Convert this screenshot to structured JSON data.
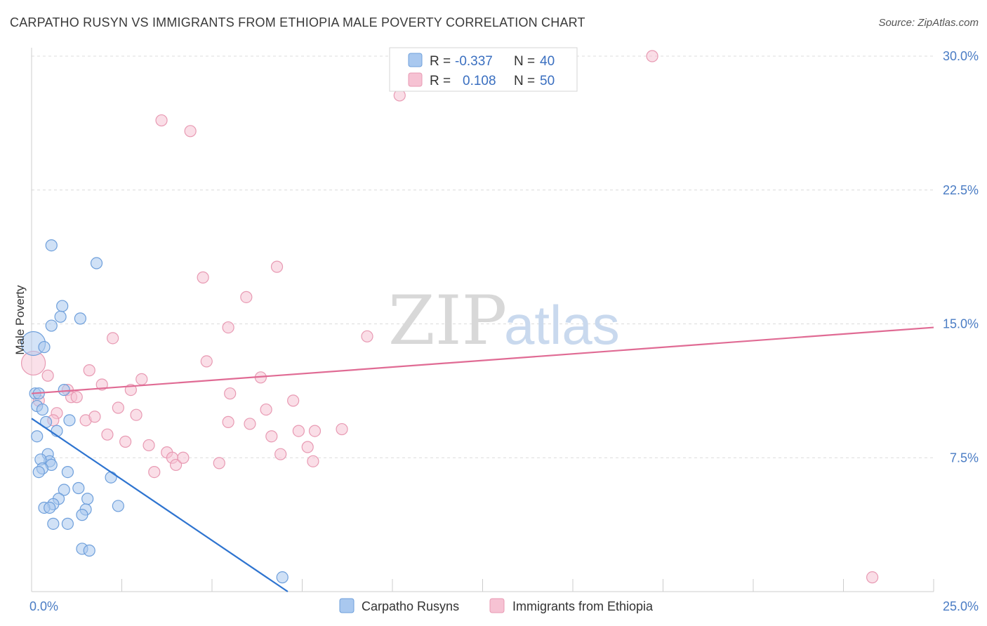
{
  "title": "CARPATHO RUSYN VS IMMIGRANTS FROM ETHIOPIA MALE POVERTY CORRELATION CHART",
  "source": "Source: ZipAtlas.com",
  "watermark": {
    "zip": "ZIP",
    "atlas": "atlas"
  },
  "colors": {
    "blue_fill": "#a9c8ef",
    "blue_stroke": "#6e9fdb",
    "blue_line": "#2e74d0",
    "pink_fill": "#f6c2d3",
    "pink_stroke": "#e89ab3",
    "pink_line": "#e06b94",
    "grid": "#dcdcdc",
    "tick_text": "#4a7cc4"
  },
  "chart_data": {
    "type": "scatter",
    "title": "CARPATHO RUSYN VS IMMIGRANTS FROM ETHIOPIA MALE POVERTY CORRELATION CHART",
    "xlabel": "",
    "ylabel": "Male Poverty",
    "xlim": [
      0,
      25
    ],
    "ylim": [
      0,
      31
    ],
    "x_tick_labels": [
      "0.0%",
      "25.0%"
    ],
    "y_ticks": [
      7.5,
      15.0,
      22.5,
      30.0
    ],
    "y_tick_labels": [
      "7.5%",
      "15.0%",
      "22.5%",
      "30.0%"
    ],
    "legend": {
      "rows": [
        {
          "r_label": "R =",
          "r_value": "-0.337",
          "n_label": "N =",
          "n_value": "40"
        },
        {
          "r_label": "R =",
          "r_value": "0.108",
          "n_label": "N =",
          "n_value": "50"
        }
      ]
    },
    "series": [
      {
        "name": "Carpatho Rusyns",
        "r": -0.337,
        "n": 40,
        "trend": {
          "x": [
            0,
            7.1
          ],
          "y": [
            9.7,
            0
          ]
        },
        "points": [
          {
            "x": 0.05,
            "y": 13.9,
            "big": true
          },
          {
            "x": 0.35,
            "y": 13.7
          },
          {
            "x": 0.1,
            "y": 11.1
          },
          {
            "x": 0.2,
            "y": 11.1
          },
          {
            "x": 0.15,
            "y": 10.4
          },
          {
            "x": 0.3,
            "y": 10.2
          },
          {
            "x": 0.55,
            "y": 19.4
          },
          {
            "x": 0.85,
            "y": 16.0
          },
          {
            "x": 0.8,
            "y": 15.4
          },
          {
            "x": 0.55,
            "y": 14.9
          },
          {
            "x": 1.35,
            "y": 15.3
          },
          {
            "x": 1.8,
            "y": 18.4
          },
          {
            "x": 0.9,
            "y": 11.3
          },
          {
            "x": 0.4,
            "y": 9.5
          },
          {
            "x": 0.7,
            "y": 9.0
          },
          {
            "x": 1.05,
            "y": 9.6
          },
          {
            "x": 0.15,
            "y": 8.7
          },
          {
            "x": 0.45,
            "y": 7.7
          },
          {
            "x": 0.5,
            "y": 7.3
          },
          {
            "x": 0.25,
            "y": 7.4
          },
          {
            "x": 0.55,
            "y": 7.1
          },
          {
            "x": 0.3,
            "y": 6.9
          },
          {
            "x": 0.2,
            "y": 6.7
          },
          {
            "x": 1.0,
            "y": 6.7
          },
          {
            "x": 2.2,
            "y": 6.4
          },
          {
            "x": 1.3,
            "y": 5.8
          },
          {
            "x": 0.9,
            "y": 5.7
          },
          {
            "x": 0.75,
            "y": 5.2
          },
          {
            "x": 0.6,
            "y": 4.9
          },
          {
            "x": 0.35,
            "y": 4.7
          },
          {
            "x": 0.5,
            "y": 4.7
          },
          {
            "x": 1.55,
            "y": 5.2
          },
          {
            "x": 1.5,
            "y": 4.6
          },
          {
            "x": 2.4,
            "y": 4.8
          },
          {
            "x": 1.4,
            "y": 4.3
          },
          {
            "x": 0.6,
            "y": 3.8
          },
          {
            "x": 1.0,
            "y": 3.8
          },
          {
            "x": 1.4,
            "y": 2.4
          },
          {
            "x": 1.6,
            "y": 2.3
          },
          {
            "x": 6.95,
            "y": 0.8
          }
        ]
      },
      {
        "name": "Immigrants from Ethiopia",
        "r": 0.108,
        "n": 50,
        "trend": {
          "x": [
            0,
            25
          ],
          "y": [
            11.1,
            14.8
          ]
        },
        "points": [
          {
            "x": 0.05,
            "y": 12.8,
            "big": true
          },
          {
            "x": 0.45,
            "y": 12.1
          },
          {
            "x": 0.2,
            "y": 10.7
          },
          {
            "x": 0.7,
            "y": 10.0
          },
          {
            "x": 0.6,
            "y": 9.6
          },
          {
            "x": 1.0,
            "y": 11.3
          },
          {
            "x": 1.1,
            "y": 10.9
          },
          {
            "x": 1.25,
            "y": 10.9
          },
          {
            "x": 1.5,
            "y": 9.6
          },
          {
            "x": 1.6,
            "y": 12.4
          },
          {
            "x": 1.75,
            "y": 9.8
          },
          {
            "x": 1.95,
            "y": 11.6
          },
          {
            "x": 2.1,
            "y": 8.8
          },
          {
            "x": 2.25,
            "y": 14.2
          },
          {
            "x": 2.4,
            "y": 10.3
          },
          {
            "x": 2.6,
            "y": 8.4
          },
          {
            "x": 2.75,
            "y": 11.3
          },
          {
            "x": 2.9,
            "y": 9.9
          },
          {
            "x": 3.05,
            "y": 11.9
          },
          {
            "x": 3.25,
            "y": 8.2
          },
          {
            "x": 3.4,
            "y": 6.7
          },
          {
            "x": 3.6,
            "y": 26.4
          },
          {
            "x": 3.75,
            "y": 7.8
          },
          {
            "x": 3.9,
            "y": 7.5
          },
          {
            "x": 4.0,
            "y": 7.1
          },
          {
            "x": 4.2,
            "y": 7.5
          },
          {
            "x": 4.4,
            "y": 25.8
          },
          {
            "x": 4.75,
            "y": 17.6
          },
          {
            "x": 4.85,
            "y": 12.9
          },
          {
            "x": 5.2,
            "y": 7.2
          },
          {
            "x": 5.5,
            "y": 11.1
          },
          {
            "x": 5.45,
            "y": 9.5
          },
          {
            "x": 5.45,
            "y": 14.8
          },
          {
            "x": 5.95,
            "y": 16.5
          },
          {
            "x": 6.05,
            "y": 9.4
          },
          {
            "x": 6.35,
            "y": 12.0
          },
          {
            "x": 6.5,
            "y": 10.2
          },
          {
            "x": 6.65,
            "y": 8.7
          },
          {
            "x": 6.8,
            "y": 18.2
          },
          {
            "x": 6.9,
            "y": 7.7
          },
          {
            "x": 7.25,
            "y": 10.7
          },
          {
            "x": 7.4,
            "y": 9.0
          },
          {
            "x": 7.65,
            "y": 8.1
          },
          {
            "x": 7.85,
            "y": 9.0
          },
          {
            "x": 7.8,
            "y": 7.3
          },
          {
            "x": 8.6,
            "y": 9.1
          },
          {
            "x": 9.3,
            "y": 14.3
          },
          {
            "x": 10.2,
            "y": 27.8
          },
          {
            "x": 17.2,
            "y": 30.0
          },
          {
            "x": 23.3,
            "y": 0.8
          }
        ]
      }
    ]
  }
}
